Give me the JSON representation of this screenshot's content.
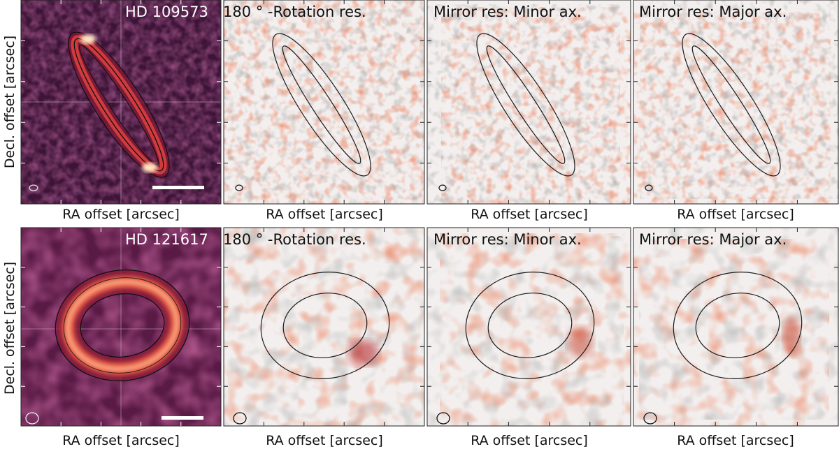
{
  "figure": {
    "ylabel": "Decl. offset [arcsec]",
    "xlabel": "RA offset [arcsec]",
    "colors": {
      "image_bg": "#3d1437",
      "image_bg_2": "#6a1c4c",
      "ring_hot": "#ffe3c4",
      "ring_mid": "#e44d3b",
      "ring_dark": "#7c1737",
      "residual_bg": "#f3efee",
      "residual_pos": "#d9573a",
      "residual_neg": "#6c6c6c",
      "contour": "#1c1c1c"
    },
    "rows": [
      {
        "id": "hd109573",
        "star_label": "HD 109573",
        "ring_shape": "narrow-ellipse",
        "panels": [
          {
            "kind": "image",
            "title": "HD 109573"
          },
          {
            "kind": "residual",
            "title": "180$^\\circ$-Rotation res.",
            "title_display": "180 ° -Rotation res."
          },
          {
            "kind": "residual",
            "title": "Mirror res: Minor ax."
          },
          {
            "kind": "residual",
            "title": "Mirror res: Major ax."
          }
        ]
      },
      {
        "id": "hd121617",
        "star_label": "HD 121617",
        "ring_shape": "wide-ring",
        "panels": [
          {
            "kind": "image",
            "title": "HD 121617"
          },
          {
            "kind": "residual",
            "title": "180 ° -Rotation res."
          },
          {
            "kind": "residual",
            "title": "Mirror res: Minor ax."
          },
          {
            "kind": "residual",
            "title": "Mirror res: Major ax."
          }
        ]
      }
    ]
  }
}
